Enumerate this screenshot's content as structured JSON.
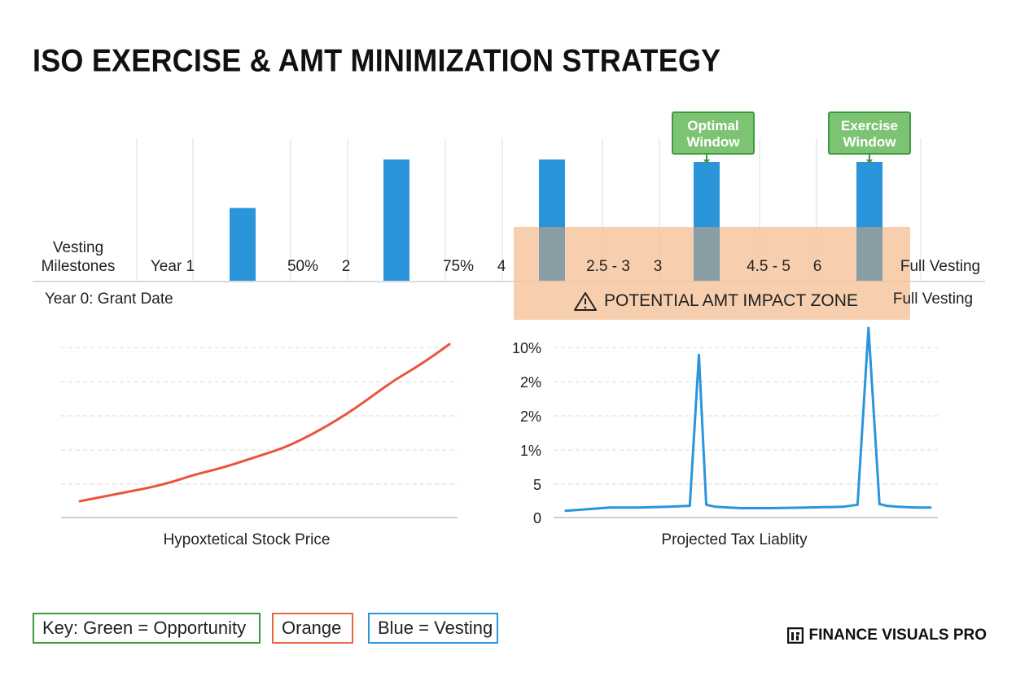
{
  "title": "ISO EXERCISE & AMT MINIMIZATION STRATEGY",
  "chart_data": [
    {
      "type": "bar",
      "row_label": "Vesting Milestones",
      "grant_label": "Year 0: Grant Date",
      "end_label": "Full Vesting",
      "tick_labels": [
        "Year 1",
        "50%",
        "2",
        "75%",
        "4",
        "2.5 - 3",
        "3",
        "4.5 - 5",
        "6",
        "Full Vesting"
      ],
      "bars": [
        {
          "height_rel": 0.6
        },
        {
          "height_rel": 1.0
        },
        {
          "height_rel": 1.0
        },
        {
          "height_rel": 0.98,
          "callout": "Optimal Window"
        },
        {
          "height_rel": 0.98,
          "callout": "Exercise Window"
        }
      ],
      "zone_label": "POTENTIAL AMT IMPACT ZONE",
      "colors": {
        "bar": "#2b95dc",
        "zone": "#f5c49c",
        "callout_fill": "#7cc474",
        "callout_border": "#3e9a3c"
      }
    },
    {
      "type": "line",
      "xlabel": "Hypoxtetical Stock Price",
      "x": [
        0,
        0.05,
        0.1,
        0.15,
        0.2,
        0.25,
        0.3,
        0.35,
        0.4,
        0.45,
        0.5,
        0.55,
        0.6,
        0.65,
        0.7,
        0.75,
        0.8,
        0.85,
        0.9,
        0.95,
        1.0
      ],
      "values": [
        0.0,
        0.03,
        0.06,
        0.09,
        0.12,
        0.16,
        0.21,
        0.25,
        0.29,
        0.34,
        0.39,
        0.44,
        0.51,
        0.59,
        0.68,
        0.78,
        0.89,
        1.0,
        1.09,
        1.19,
        1.3
      ],
      "color": "#e8553b",
      "grid": true
    },
    {
      "type": "line",
      "xlabel": "Projected Tax Liablity",
      "yticks": [
        "10%",
        "2%",
        "2%",
        "1%",
        "5",
        "0"
      ],
      "x": [
        0,
        0.06,
        0.12,
        0.2,
        0.28,
        0.34,
        0.365,
        0.385,
        0.41,
        0.48,
        0.56,
        0.66,
        0.76,
        0.8,
        0.83,
        0.86,
        0.88,
        0.91,
        0.96,
        1.0
      ],
      "values": [
        0.1,
        0.15,
        0.2,
        0.2,
        0.22,
        0.25,
        4.7,
        0.28,
        0.22,
        0.18,
        0.18,
        0.2,
        0.22,
        0.28,
        5.5,
        0.3,
        0.25,
        0.22,
        0.2,
        0.2
      ],
      "color": "#2b95dc",
      "grid": true
    }
  ],
  "legend": {
    "green": "Key:  Green = Opportunity",
    "orange": "Orange",
    "blue": "Blue = Vesting"
  },
  "brand": "FINANCE VISUALS PRO"
}
